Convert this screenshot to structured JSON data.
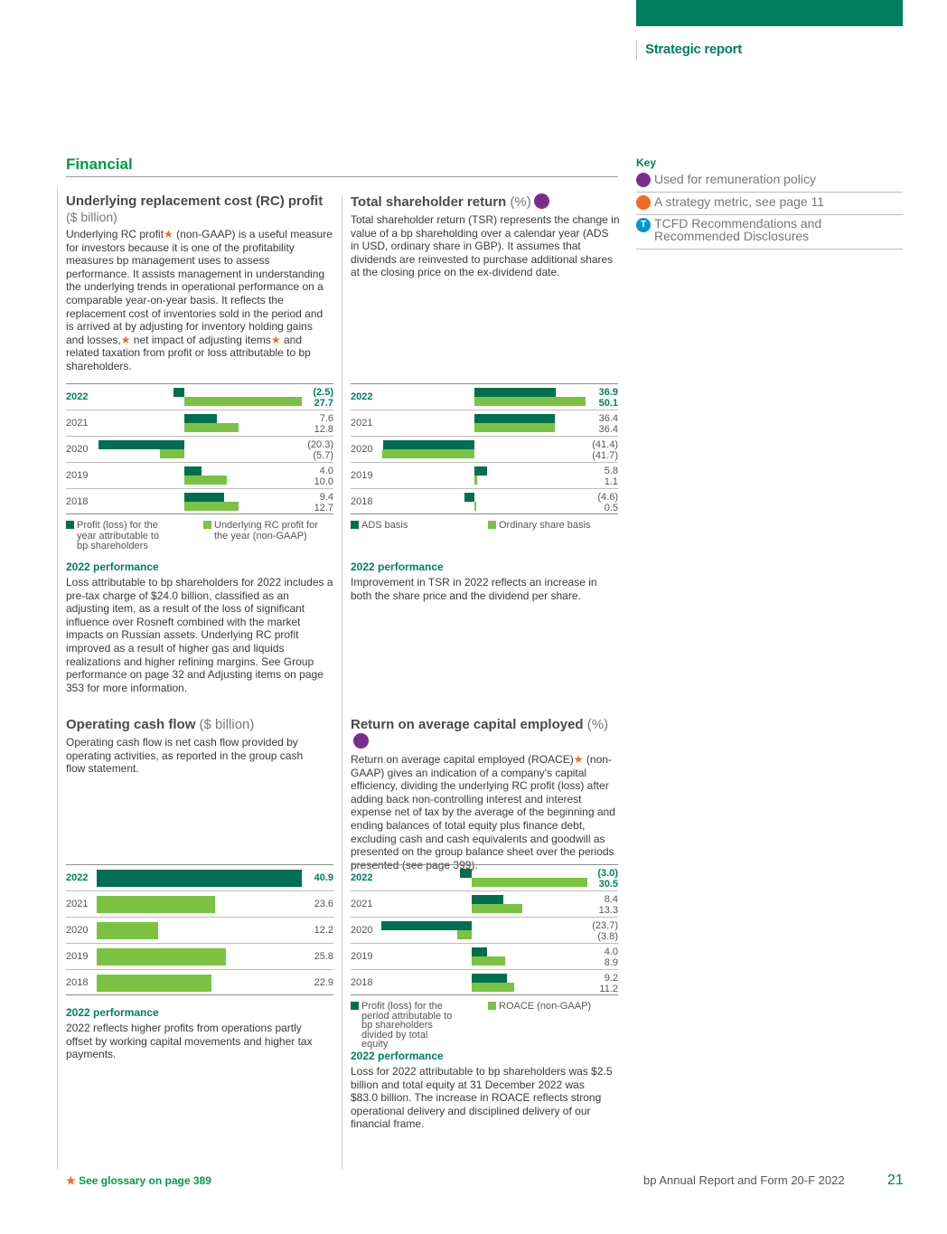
{
  "header": {
    "section_label": "Strategic report"
  },
  "financial_title": "Financial",
  "key": {
    "title": "Key",
    "items": [
      {
        "label": "Used for remuneration policy",
        "color": "#7b2d8e",
        "icon": "purple-dot-icon"
      },
      {
        "label": "A strategy metric, see page 11",
        "color": "#f26b21",
        "icon": "orange-dot-icon"
      },
      {
        "label": "TCFD Recommendations and Recommended Disclosures",
        "color": "#0096d6",
        "icon": "tcfd-t-icon",
        "glyph": "T"
      }
    ]
  },
  "rc_profit": {
    "title": "Underlying replacement cost (RC) profit",
    "unit": "($ billion)",
    "desc_1": "Underlying RC profit",
    "desc_2": " (non-GAAP) is a useful measure for investors because it is one of the profitability measures bp management uses to assess performance. It assists management in understanding the underlying trends in operational performance on a comparable year-on-year basis. It reflects the replacement cost of inventories sold in the period and is arrived at by adjusting for inventory holding gains and losses,",
    "desc_3": " net impact of adjusting items",
    "desc_4": " and related taxation from profit or loss attributable to bp shareholders.",
    "legend": [
      "Profit (loss) for the year attributable to bp shareholders",
      "Underlying RC profit for the year (non-GAAP)"
    ],
    "perf_title": "2022 performance",
    "perf_text": "Loss attributable to bp shareholders for 2022 includes a pre-tax charge of $24.0 billion, classified as an adjusting item, as a result of the loss of significant influence over Rosneft combined with the market impacts on Russian assets. Underlying RC profit improved as a result of higher gas and liquids realizations and higher refining margins. See Group performance on page 32 and Adjusting items on page 353 for more information."
  },
  "tsr": {
    "title": "Total shareholder return",
    "unit": "(%)",
    "desc": "Total shareholder return (TSR) represents the change in value of a bp shareholding over a calendar year (ADS in USD, ordinary share in GBP). It assumes that dividends are reinvested to purchase additional shares at the closing price on the ex-dividend date.",
    "legend": [
      "ADS basis",
      "Ordinary share basis"
    ],
    "perf_title": "2022 performance",
    "perf_text": "Improvement in TSR in 2022 reflects an increase in both the share price and the dividend per share."
  },
  "ocf": {
    "title": "Operating cash flow",
    "unit": "($ billion)",
    "desc": "Operating cash flow is net cash flow provided by operating activities, as reported in the group cash flow statement.",
    "perf_title": "2022 performance",
    "perf_text": "2022 reflects higher profits from operations partly offset by working capital movements and higher tax payments."
  },
  "roace": {
    "title": "Return on average capital employed",
    "unit": "(%)",
    "desc_1": "Return on average capital employed (ROACE)",
    "desc_2": " (non-GAAP) gives an indication of a company's capital efficiency, dividing the underlying RC profit (loss) after adding back non-controlling interest and interest expense net of tax by the average of the beginning and ending balances of total equity plus finance debt, excluding cash and cash equivalents and goodwill as presented on the group balance sheet over the periods presented (see page 399).",
    "legend": [
      "Profit (loss) for the period attributable to bp shareholders divided by total equity",
      "ROACE (non-GAAP)"
    ],
    "perf_title": "2022 performance",
    "perf_text": "Loss for 2022 attributable to bp shareholders was $2.5 billion and total equity at 31 December 2022 was $83.0 billion. The increase in ROACE reflects strong operational delivery and disciplined delivery of our financial frame."
  },
  "footer": {
    "glossary": "See glossary on page 389",
    "report": "bp Annual Report and Form 20-F 2022",
    "page": "21"
  },
  "chart_data": [
    {
      "id": "rc",
      "type": "bar",
      "orientation": "horizontal",
      "categories": [
        "2022",
        "2021",
        "2020",
        "2019",
        "2018"
      ],
      "series": [
        {
          "name": "Profit (loss) for the year attributable to bp shareholders",
          "values": [
            -2.5,
            7.6,
            -20.3,
            4.0,
            9.4
          ],
          "labels": [
            "(2.5)",
            "7.6",
            "(20.3)",
            "4.0",
            "9.4"
          ]
        },
        {
          "name": "Underlying RC profit for the year (non-GAAP)",
          "values": [
            27.7,
            12.8,
            -5.7,
            10.0,
            12.7
          ],
          "labels": [
            "27.7",
            "12.8",
            "(5.7)",
            "10.0",
            "12.7"
          ]
        }
      ],
      "colors": [
        "#006f4f",
        "#7bc242"
      ]
    },
    {
      "id": "tsr",
      "type": "bar",
      "orientation": "horizontal",
      "categories": [
        "2022",
        "2021",
        "2020",
        "2019",
        "2018"
      ],
      "series": [
        {
          "name": "ADS basis",
          "values": [
            36.9,
            36.4,
            -41.4,
            5.8,
            -4.6
          ],
          "labels": [
            "36.9",
            "36.4",
            "(41.4)",
            "5.8",
            "(4.6)"
          ]
        },
        {
          "name": "Ordinary share basis",
          "values": [
            50.1,
            36.4,
            -41.7,
            1.1,
            0.5
          ],
          "labels": [
            "50.1",
            "36.4",
            "(41.7)",
            "1.1",
            "0.5"
          ]
        }
      ],
      "colors": [
        "#006f4f",
        "#7bc242"
      ]
    },
    {
      "id": "ocf",
      "type": "bar",
      "orientation": "horizontal",
      "categories": [
        "2022",
        "2021",
        "2020",
        "2019",
        "2018"
      ],
      "series": [
        {
          "name": "",
          "values": [
            40.9,
            23.6,
            12.2,
            25.8,
            22.9
          ],
          "labels": [
            "40.9",
            "23.6",
            "12.2",
            "25.8",
            "22.9"
          ]
        }
      ],
      "colors": [
        "#006f4f",
        "#7bc242"
      ]
    },
    {
      "id": "roace",
      "type": "bar",
      "orientation": "horizontal",
      "categories": [
        "2022",
        "2021",
        "2020",
        "2019",
        "2018"
      ],
      "series": [
        {
          "name": "Profit (loss) for the period attributable to bp shareholders divided by total equity",
          "values": [
            -3.0,
            8.4,
            -23.7,
            4.0,
            9.2
          ],
          "labels": [
            "(3.0)",
            "8.4",
            "(23.7)",
            "4.0",
            "9.2"
          ]
        },
        {
          "name": "ROACE (non-GAAP)",
          "values": [
            30.5,
            13.3,
            -3.8,
            8.9,
            11.2
          ],
          "labels": [
            "30.5",
            "13.3",
            "(3.8)",
            "8.9",
            "11.2"
          ]
        }
      ],
      "colors": [
        "#006f4f",
        "#7bc242"
      ]
    }
  ]
}
